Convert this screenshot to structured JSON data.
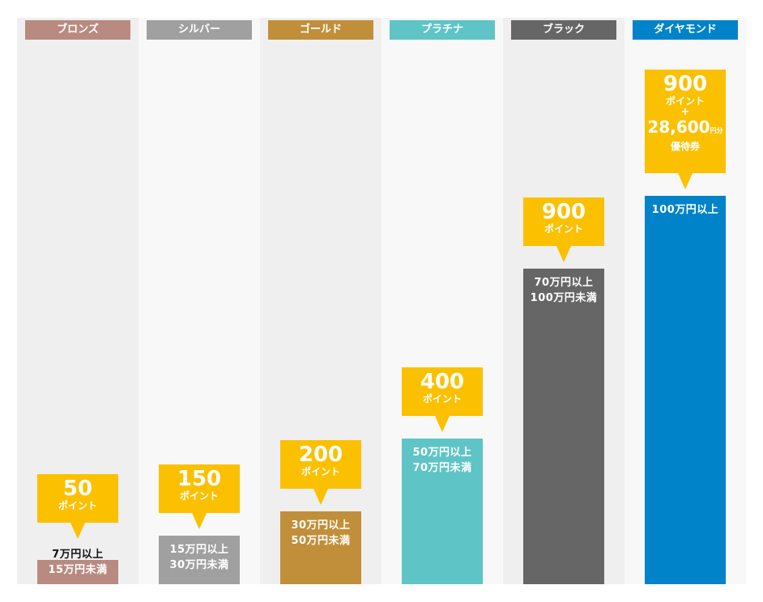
{
  "chart_data": {
    "type": "bar",
    "title": "",
    "xlabel": "",
    "ylabel": "",
    "categories": [
      "ブロンズ",
      "シルバー",
      "ゴールド",
      "プラチナ",
      "ブラック",
      "ダイヤモンド"
    ],
    "values": [
      1,
      2,
      3,
      6,
      13,
      16
    ],
    "tiers": [
      {
        "name": "ブロンズ",
        "color": "#b98a80",
        "range_lines": [
          "7万円以上",
          "15万円未満"
        ],
        "points": "50",
        "points_unit": "ポイント"
      },
      {
        "name": "シルバー",
        "color": "#a0a0a0",
        "range_lines": [
          "15万円以上",
          "30万円未満"
        ],
        "points": "150",
        "points_unit": "ポイント"
      },
      {
        "name": "ゴールド",
        "color": "#c18f3a",
        "range_lines": [
          "30万円以上",
          "50万円未満"
        ],
        "points": "200",
        "points_unit": "ポイント"
      },
      {
        "name": "プラチナ",
        "color": "#5ec4c6",
        "range_lines": [
          "50万円以上",
          "70万円未満"
        ],
        "points": "400",
        "points_unit": "ポイント"
      },
      {
        "name": "ブラック",
        "color": "#666666",
        "range_lines": [
          "70万円以上",
          "100万円未満"
        ],
        "points": "900",
        "points_unit": "ポイント"
      },
      {
        "name": "ダイヤモンド",
        "color": "#0083c9",
        "range_lines": [
          "100万円以上"
        ],
        "points": "900",
        "points_unit": "ポイント",
        "plus": "+",
        "voucher_amount": "28,600",
        "voucher_unit": "円分",
        "voucher_label": "優待券"
      }
    ],
    "reward_color": "#fbc000",
    "grid": false,
    "legend": "none"
  }
}
